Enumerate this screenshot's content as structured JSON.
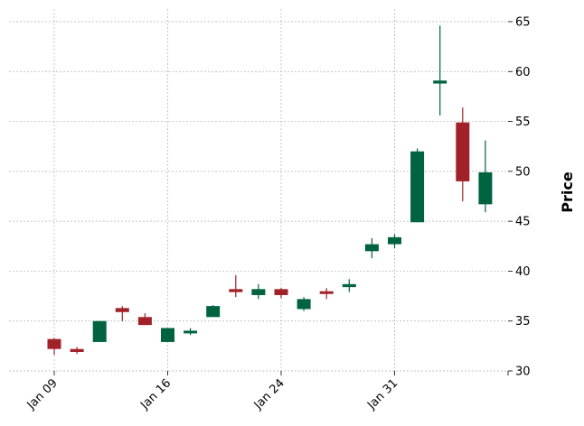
{
  "chart_data": {
    "type": "candlestick",
    "ylabel": "Price",
    "ylim": [
      30,
      66
    ],
    "yticks": [
      30,
      35,
      40,
      45,
      50,
      55,
      60,
      65
    ],
    "y_axis_side": "right",
    "grid": true,
    "xtick_labels": [
      "Jan 09",
      "Jan 16",
      "Jan 24",
      "Jan 31",
      ""
    ],
    "xtick_index": [
      0,
      5,
      10,
      15,
      20
    ],
    "colors": {
      "up": "#006340",
      "down": "#a02128",
      "grid": "#b0b0b0"
    },
    "candles": [
      {
        "open": 33.2,
        "high": 33.3,
        "low": 31.6,
        "close": 32.2
      },
      {
        "open": 32.2,
        "high": 32.4,
        "low": 31.7,
        "close": 31.9
      },
      {
        "open": 32.9,
        "high": 35.0,
        "low": 32.9,
        "close": 35.0
      },
      {
        "open": 36.3,
        "high": 36.5,
        "low": 35.0,
        "close": 35.9
      },
      {
        "open": 35.4,
        "high": 35.8,
        "low": 34.6,
        "close": 34.6
      },
      {
        "open": 32.9,
        "high": 34.3,
        "low": 32.9,
        "close": 34.3
      },
      {
        "open": 33.8,
        "high": 34.3,
        "low": 33.6,
        "close": 34.0
      },
      {
        "open": 35.4,
        "high": 36.6,
        "low": 35.4,
        "close": 36.5
      },
      {
        "open": 38.2,
        "high": 39.6,
        "low": 37.4,
        "close": 37.9
      },
      {
        "open": 37.6,
        "high": 38.7,
        "low": 37.2,
        "close": 38.2
      },
      {
        "open": 38.2,
        "high": 38.3,
        "low": 37.3,
        "close": 37.6
      },
      {
        "open": 36.2,
        "high": 37.4,
        "low": 36.0,
        "close": 37.2
      },
      {
        "open": 37.9,
        "high": 38.3,
        "low": 37.2,
        "close": 37.8
      },
      {
        "open": 38.4,
        "high": 39.2,
        "low": 37.9,
        "close": 38.7
      },
      {
        "open": 42.0,
        "high": 43.3,
        "low": 41.3,
        "close": 42.7
      },
      {
        "open": 42.7,
        "high": 43.7,
        "low": 42.3,
        "close": 43.4
      },
      {
        "open": 44.9,
        "high": 52.3,
        "low": 44.9,
        "close": 52.0
      },
      {
        "open": 58.8,
        "high": 64.6,
        "low": 55.6,
        "close": 59.1
      },
      {
        "open": 54.9,
        "high": 56.4,
        "low": 47.0,
        "close": 49.0
      },
      {
        "open": 46.7,
        "high": 53.1,
        "low": 45.9,
        "close": 49.9
      }
    ]
  }
}
